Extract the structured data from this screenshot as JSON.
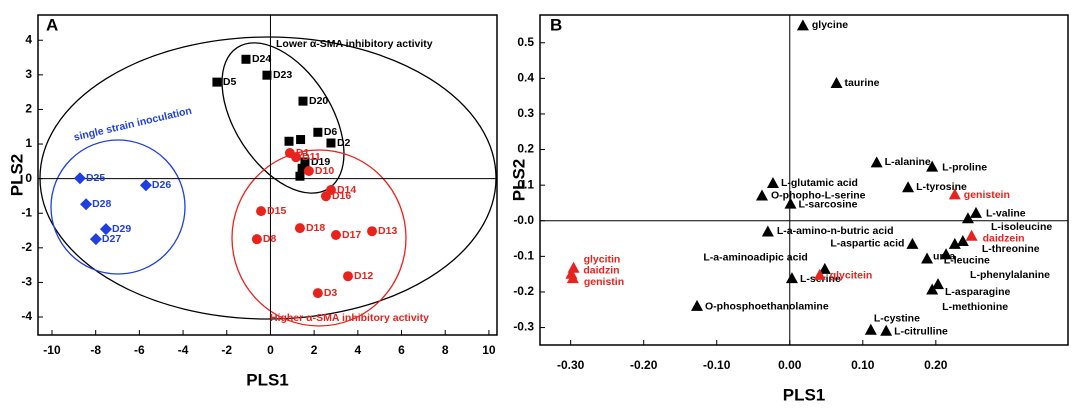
{
  "chart_data": [
    {
      "type": "scatter",
      "title": "A",
      "xlabel": "PLS1",
      "ylabel": "PLS2",
      "xlim": [
        -10.64,
        10.37
      ],
      "ylim": [
        -4.52,
        4.73
      ],
      "xticks": [
        -10,
        -8,
        -6,
        -4,
        -2,
        0,
        2,
        4,
        6,
        8,
        10
      ],
      "yticks": [
        -4,
        -3,
        -2,
        -1,
        0,
        1,
        2,
        3,
        4
      ],
      "annotations": [
        {
          "text": "Lower α-SMA inhibitory activity",
          "color": "#000000"
        },
        {
          "text": "single strain inoculation",
          "color": "#1f3fe0"
        },
        {
          "text": "Higher α-SMA inhibitory activity",
          "color": "#e8231d"
        }
      ],
      "series": [
        {
          "color": "#000000",
          "marker": "square",
          "labels": [
            "D24",
            "D23",
            "D5",
            "D20",
            "D6",
            "D2",
            "D19",
            null,
            null,
            null,
            null
          ],
          "x": [
            -1.12,
            -0.16,
            -2.45,
            1.49,
            2.17,
            2.77,
            1.58,
            0.85,
            1.38,
            1.45,
            1.35
          ],
          "values": [
            3.45,
            2.99,
            2.79,
            2.24,
            1.34,
            1.03,
            0.48,
            1.08,
            1.13,
            0.3,
            0.07
          ]
        },
        {
          "color": "#e8231d",
          "marker": "circle",
          "labels": [
            "D1",
            "D11",
            "D10",
            "D14",
            "D16",
            "D15",
            "D18",
            "D17",
            "D13",
            "D8",
            "D12",
            "D3"
          ],
          "x": [
            0.89,
            1.17,
            1.76,
            2.77,
            2.54,
            -0.43,
            1.35,
            3.0,
            4.65,
            -0.62,
            3.55,
            2.17
          ],
          "values": [
            0.74,
            0.62,
            0.22,
            -0.33,
            -0.51,
            -0.94,
            -1.43,
            -1.63,
            -1.52,
            -1.75,
            -2.82,
            -3.31
          ]
        },
        {
          "color": "#1f3fe0",
          "marker": "diamond",
          "labels": [
            "D25",
            "D26",
            "D28",
            "D29",
            "D27"
          ],
          "x": [
            -8.72,
            -5.7,
            -8.44,
            -7.53,
            -7.99
          ],
          "values": [
            0.01,
            -0.19,
            -0.74,
            -1.46,
            -1.75
          ]
        }
      ]
    },
    {
      "type": "scatter",
      "title": "B",
      "xlabel": "PLS1",
      "ylabel": "PLS2",
      "xlim": [
        -0.342,
        0.381
      ],
      "ylim": [
        -0.349,
        0.578
      ],
      "xticks": [
        {
          "value": -0.3,
          "label": "-0.30"
        },
        {
          "value": -0.2,
          "label": "-0.20"
        },
        {
          "value": -0.1,
          "label": "-0.10"
        },
        {
          "value": 0,
          "label": "0.00"
        },
        {
          "value": 0.1,
          "label": "0.10"
        },
        {
          "value": 0.2,
          "label": "0.20"
        }
      ],
      "yticks": [
        0.5,
        0.4,
        0.3,
        0.2,
        0.1,
        {
          "value": 0,
          "label": "-0.0"
        },
        -0.1,
        -0.2,
        -0.3
      ],
      "series": [
        {
          "color": "#000000",
          "marker": "triangle",
          "labels": [
            "glycine",
            "taurine",
            "L-alanine",
            "L-proline",
            "L-glutamic acid",
            "L-tyrosine",
            "O-phopho-L-serine",
            "L-sarcosine",
            "L-valine",
            "L-isoleucine",
            "L-threonine",
            "L-a-amino-n-butric acid",
            "L-aspartic acid",
            "L-leucine",
            "urea",
            "L-phenylalanine",
            "L-asparagine",
            "L-methionine",
            "L-a-aminoadipic acid",
            "L-serine",
            "O-phosphoethanolamine",
            "L-cystine",
            "L-citrulline"
          ],
          "x": [
            0.018,
            0.064,
            0.119,
            0.195,
            -0.023,
            0.162,
            -0.038,
            0.001,
            0.255,
            0.244,
            0.237,
            -0.03,
            0.168,
            0.226,
            0.188,
            0.214,
            0.203,
            0.195,
            0.048,
            0.003,
            -0.127,
            0.111,
            0.132
          ],
          "values": [
            0.549,
            0.387,
            0.164,
            0.152,
            0.106,
            0.094,
            0.071,
            0.048,
            0.022,
            0.007,
            -0.057,
            -0.03,
            -0.065,
            -0.065,
            -0.106,
            -0.094,
            -0.178,
            -0.193,
            -0.135,
            -0.161,
            -0.239,
            -0.306,
            -0.309
          ]
        },
        {
          "color": "#e8231d",
          "marker": "triangle",
          "labels": [
            "glycitin",
            "daidzin",
            "genistin",
            "glycitein",
            "genistein",
            "daidzein"
          ],
          "x": [
            -0.296,
            -0.299,
            -0.297,
            0.041,
            0.226,
            0.249
          ],
          "values": [
            -0.132,
            -0.149,
            -0.161,
            -0.152,
            0.074,
            -0.042
          ]
        }
      ]
    }
  ]
}
